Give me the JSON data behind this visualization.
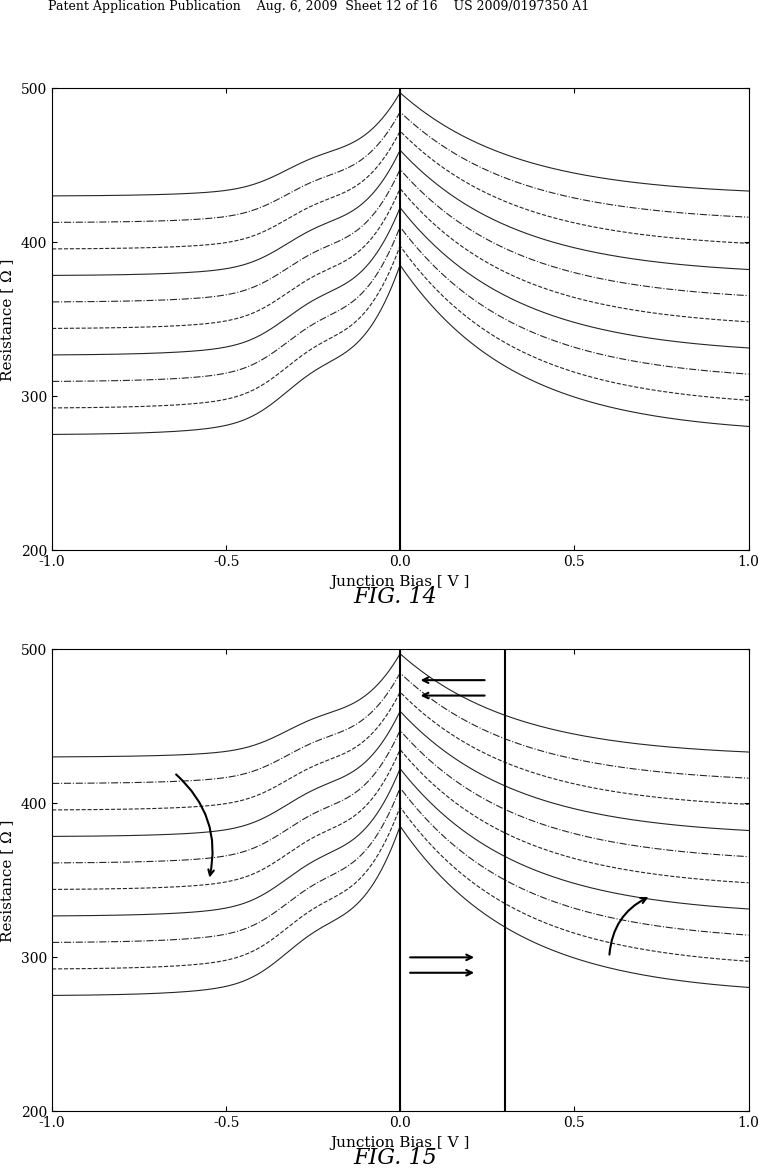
{
  "fig_width": 10.24,
  "fig_height": 13.2,
  "background_color": "#ffffff",
  "header_text": "Patent Application Publication    Aug. 6, 2009  Sheet 12 of 16    US 2009/0197350 A1",
  "fig14_title": "FIG. 14",
  "fig15_title": "FIG. 15",
  "xlabel": "Junction Bias [ V ]",
  "ylabel": "Resistance [ Ω ]",
  "xlim": [
    -1.0,
    1.0
  ],
  "ylim": [
    200,
    500
  ],
  "yticks": [
    200,
    300,
    400,
    500
  ],
  "xticks": [
    -1.0,
    -0.5,
    0.0,
    0.5,
    1.0
  ],
  "num_curves": 10,
  "line_color": "#000000",
  "line_width": 0.8
}
